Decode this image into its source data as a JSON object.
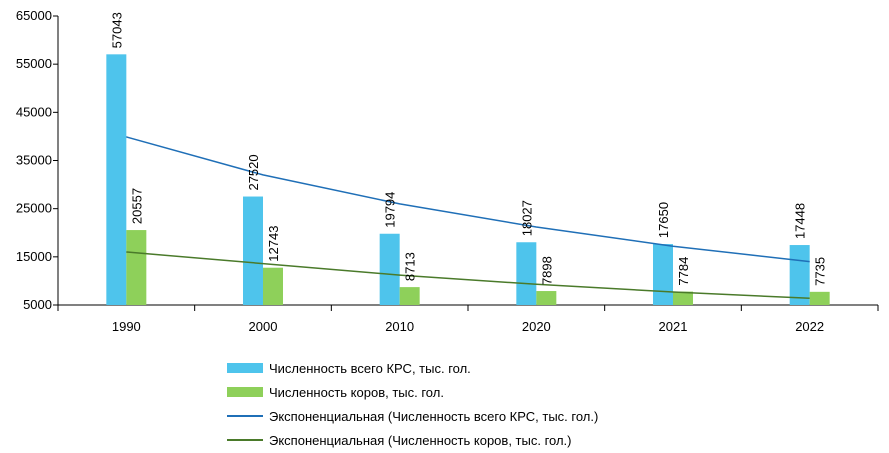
{
  "chart_data": {
    "type": "bar",
    "categories": [
      "1990",
      "2000",
      "2010",
      "2020",
      "2021",
      "2022"
    ],
    "series": [
      {
        "name": "Численность всего КРС, тыс. гол.",
        "values": [
          57043,
          27520,
          19794,
          18027,
          17650,
          17448
        ],
        "color": "#4ec4ec"
      },
      {
        "name": "Численность коров, тыс. гол.",
        "values": [
          20557,
          12743,
          8713,
          7898,
          7784,
          7735
        ],
        "color": "#8ed05a"
      }
    ],
    "trendlines": [
      {
        "name": "Экспоненциальная (Численность всего КРС, тыс. гол.)",
        "type": "exponential",
        "values": [
          39900,
          32000,
          26000,
          21200,
          17200,
          14000
        ],
        "color": "#1f6fb7"
      },
      {
        "name": "Экспоненциальная (Численность коров, тыс. гол.)",
        "type": "exponential",
        "values": [
          16000,
          13600,
          11200,
          9300,
          7700,
          6400
        ],
        "color": "#4a7a2a"
      }
    ],
    "y_ticks": [
      "5000",
      "15000",
      "25000",
      "35000",
      "45000",
      "55000",
      "65000"
    ],
    "ylim": [
      5000,
      65000
    ],
    "grid": false,
    "legend_position": "bottom",
    "title": "",
    "xlabel": "",
    "ylabel": ""
  }
}
